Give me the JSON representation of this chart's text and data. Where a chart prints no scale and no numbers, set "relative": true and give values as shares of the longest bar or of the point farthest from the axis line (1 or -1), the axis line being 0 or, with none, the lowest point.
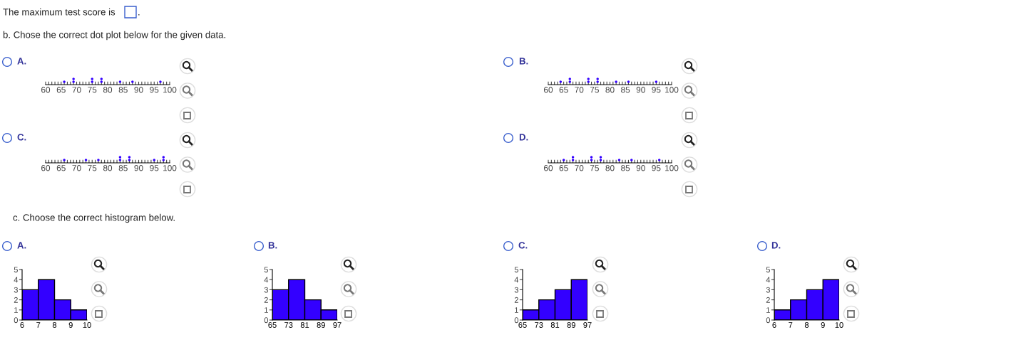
{
  "chart_data": [
    {
      "type": "scatter",
      "title": "A.",
      "annotations": [
        "The maximum test score is",
        ".",
        "b. Chose the correct dot plot below for the given data."
      ],
      "relative": true,
      "marker": "circle",
      "color": "#3300ff",
      "grid": false,
      "tick_labels": "x",
      "x": [
        66,
        69,
        69,
        75,
        75,
        78,
        78,
        84,
        88,
        97
      ],
      "values": [
        0.5,
        0.5,
        1,
        0.5,
        1,
        0.5,
        1,
        0.5,
        0.5,
        0.5
      ],
      "xlim": [
        60,
        100
      ],
      "xticks": [
        60,
        {
          "value": 61,
          "label": null
        },
        {
          "value": 62,
          "label": null
        },
        {
          "value": 63,
          "label": null
        },
        {
          "value": 64,
          "label": null
        },
        65,
        {
          "value": 66,
          "label": null
        },
        {
          "value": 67,
          "label": null
        },
        {
          "value": 68,
          "label": null
        },
        {
          "value": 69,
          "label": null
        },
        70,
        {
          "value": 71,
          "label": null
        },
        {
          "value": 72,
          "label": null
        },
        {
          "value": 73,
          "label": null
        },
        {
          "value": 74,
          "label": null
        },
        75,
        {
          "value": 76,
          "label": null
        },
        {
          "value": 77,
          "label": null
        },
        {
          "value": 78,
          "label": null
        },
        {
          "value": 79,
          "label": null
        },
        80,
        {
          "value": 81,
          "label": null
        },
        {
          "value": 82,
          "label": null
        },
        {
          "value": 83,
          "label": null
        },
        {
          "value": 84,
          "label": null
        },
        85,
        {
          "value": 86,
          "label": null
        },
        {
          "value": 87,
          "label": null
        },
        {
          "value": 88,
          "label": null
        },
        {
          "value": 89,
          "label": null
        },
        90,
        {
          "value": 91,
          "label": null
        },
        {
          "value": 92,
          "label": null
        },
        {
          "value": 93,
          "label": null
        },
        {
          "value": 94,
          "label": null
        },
        95,
        {
          "value": 96,
          "label": null
        },
        {
          "value": 97,
          "label": null
        },
        {
          "value": 98,
          "label": null
        },
        {
          "value": 99,
          "label": null
        },
        100
      ]
    },
    {
      "type": "scatter",
      "title": "B.",
      "relative": true,
      "marker": "circle",
      "color": "#3300ff",
      "grid": false,
      "tick_labels": "x",
      "x": [
        64,
        67,
        67,
        73,
        73,
        76,
        76,
        82,
        86,
        95
      ],
      "values": [
        0.5,
        0.5,
        1,
        0.5,
        1,
        0.5,
        1,
        0.5,
        0.5,
        0.5
      ],
      "xlim": [
        60,
        100
      ],
      "xticks": [
        60,
        {
          "value": 61,
          "label": null
        },
        {
          "value": 62,
          "label": null
        },
        {
          "value": 63,
          "label": null
        },
        {
          "value": 64,
          "label": null
        },
        65,
        {
          "value": 66,
          "label": null
        },
        {
          "value": 67,
          "label": null
        },
        {
          "value": 68,
          "label": null
        },
        {
          "value": 69,
          "label": null
        },
        70,
        {
          "value": 71,
          "label": null
        },
        {
          "value": 72,
          "label": null
        },
        {
          "value": 73,
          "label": null
        },
        {
          "value": 74,
          "label": null
        },
        75,
        {
          "value": 76,
          "label": null
        },
        {
          "value": 77,
          "label": null
        },
        {
          "value": 78,
          "label": null
        },
        {
          "value": 79,
          "label": null
        },
        80,
        {
          "value": 81,
          "label": null
        },
        {
          "value": 82,
          "label": null
        },
        {
          "value": 83,
          "label": null
        },
        {
          "value": 84,
          "label": null
        },
        85,
        {
          "value": 86,
          "label": null
        },
        {
          "value": 87,
          "label": null
        },
        {
          "value": 88,
          "label": null
        },
        {
          "value": 89,
          "label": null
        },
        90,
        {
          "value": 91,
          "label": null
        },
        {
          "value": 92,
          "label": null
        },
        {
          "value": 93,
          "label": null
        },
        {
          "value": 94,
          "label": null
        },
        95,
        {
          "value": 96,
          "label": null
        },
        {
          "value": 97,
          "label": null
        },
        {
          "value": 98,
          "label": null
        },
        {
          "value": 99,
          "label": null
        },
        100
      ]
    },
    {
      "type": "scatter",
      "title": "C.",
      "relative": true,
      "marker": "circle",
      "color": "#3300ff",
      "grid": false,
      "tick_labels": "x",
      "x": [
        66,
        73,
        77,
        84,
        84,
        87,
        87,
        95,
        98,
        98
      ],
      "values": [
        0.5,
        0.5,
        0.5,
        0.5,
        1,
        0.5,
        1,
        0.5,
        0.5,
        1
      ],
      "xlim": [
        60,
        100
      ],
      "xticks": [
        60,
        {
          "value": 61,
          "label": null
        },
        {
          "value": 62,
          "label": null
        },
        {
          "value": 63,
          "label": null
        },
        {
          "value": 64,
          "label": null
        },
        65,
        {
          "value": 66,
          "label": null
        },
        {
          "value": 67,
          "label": null
        },
        {
          "value": 68,
          "label": null
        },
        {
          "value": 69,
          "label": null
        },
        70,
        {
          "value": 71,
          "label": null
        },
        {
          "value": 72,
          "label": null
        },
        {
          "value": 73,
          "label": null
        },
        {
          "value": 74,
          "label": null
        },
        75,
        {
          "value": 76,
          "label": null
        },
        {
          "value": 77,
          "label": null
        },
        {
          "value": 78,
          "label": null
        },
        {
          "value": 79,
          "label": null
        },
        80,
        {
          "value": 81,
          "label": null
        },
        {
          "value": 82,
          "label": null
        },
        {
          "value": 83,
          "label": null
        },
        {
          "value": 84,
          "label": null
        },
        85,
        {
          "value": 86,
          "label": null
        },
        {
          "value": 87,
          "label": null
        },
        {
          "value": 88,
          "label": null
        },
        {
          "value": 89,
          "label": null
        },
        90,
        {
          "value": 91,
          "label": null
        },
        {
          "value": 92,
          "label": null
        },
        {
          "value": 93,
          "label": null
        },
        {
          "value": 94,
          "label": null
        },
        95,
        {
          "value": 96,
          "label": null
        },
        {
          "value": 97,
          "label": null
        },
        {
          "value": 98,
          "label": null
        },
        {
          "value": 99,
          "label": null
        },
        100
      ]
    },
    {
      "type": "scatter",
      "title": "D.",
      "relative": true,
      "marker": "circle",
      "color": "#3300ff",
      "grid": false,
      "tick_labels": "x",
      "x": [
        65,
        68,
        68,
        74,
        74,
        77,
        77,
        83,
        87,
        96
      ],
      "values": [
        0.5,
        0.5,
        1,
        0.5,
        1,
        0.5,
        1,
        0.5,
        0.5,
        0.5
      ],
      "xlim": [
        60,
        100
      ],
      "xticks": [
        60,
        {
          "value": 61,
          "label": null
        },
        {
          "value": 62,
          "label": null
        },
        {
          "value": 63,
          "label": null
        },
        {
          "value": 64,
          "label": null
        },
        65,
        {
          "value": 66,
          "label": null
        },
        {
          "value": 67,
          "label": null
        },
        {
          "value": 68,
          "label": null
        },
        {
          "value": 69,
          "label": null
        },
        70,
        {
          "value": 71,
          "label": null
        },
        {
          "value": 72,
          "label": null
        },
        {
          "value": 73,
          "label": null
        },
        {
          "value": 74,
          "label": null
        },
        75,
        {
          "value": 76,
          "label": null
        },
        {
          "value": 77,
          "label": null
        },
        {
          "value": 78,
          "label": null
        },
        {
          "value": 79,
          "label": null
        },
        80,
        {
          "value": 81,
          "label": null
        },
        {
          "value": 82,
          "label": null
        },
        {
          "value": 83,
          "label": null
        },
        {
          "value": 84,
          "label": null
        },
        85,
        {
          "value": 86,
          "label": null
        },
        {
          "value": 87,
          "label": null
        },
        {
          "value": 88,
          "label": null
        },
        {
          "value": 89,
          "label": null
        },
        90,
        {
          "value": 91,
          "label": null
        },
        {
          "value": 92,
          "label": null
        },
        {
          "value": 93,
          "label": null
        },
        {
          "value": 94,
          "label": null
        },
        95,
        {
          "value": 96,
          "label": null
        },
        {
          "value": 97,
          "label": null
        },
        {
          "value": 98,
          "label": null
        },
        {
          "value": 99,
          "label": null
        },
        100
      ]
    },
    {
      "type": "histogram",
      "title": "A.",
      "annotations": [
        "c. Choose the correct histogram below."
      ],
      "color": "#3300ff",
      "grid": false,
      "bins": [
        6,
        7,
        8,
        9,
        10
      ],
      "values": [
        3,
        4,
        2,
        1
      ],
      "xlim": [
        6,
        10
      ],
      "xticks": [
        6,
        7,
        8,
        9,
        10
      ],
      "ylim": [
        0,
        5
      ],
      "yticks": [
        0,
        1,
        2,
        3,
        4,
        5
      ]
    },
    {
      "type": "histogram",
      "title": "B.",
      "color": "#3300ff",
      "grid": false,
      "bins": [
        65,
        73,
        81,
        89,
        97
      ],
      "values": [
        3,
        4,
        2,
        1
      ],
      "xlim": [
        65,
        97
      ],
      "xticks": [
        65,
        73,
        81,
        89,
        97
      ],
      "ylim": [
        0,
        5
      ],
      "yticks": [
        0,
        1,
        2,
        3,
        4,
        5
      ]
    },
    {
      "type": "histogram",
      "title": "C.",
      "color": "#3300ff",
      "grid": false,
      "bins": [
        65,
        73,
        81,
        89,
        97
      ],
      "values": [
        1,
        2,
        3,
        4
      ],
      "xlim": [
        65,
        97
      ],
      "xticks": [
        65,
        73,
        81,
        89,
        97
      ],
      "ylim": [
        0,
        5
      ],
      "yticks": [
        0,
        1,
        2,
        3,
        4,
        5
      ]
    },
    {
      "type": "histogram",
      "title": "D.",
      "color": "#3300ff",
      "grid": false,
      "bins": [
        6,
        7,
        8,
        9,
        10
      ],
      "values": [
        1,
        2,
        3,
        4
      ],
      "xlim": [
        6,
        10
      ],
      "xticks": [
        6,
        7,
        8,
        9,
        10
      ],
      "ylim": [
        0,
        5
      ],
      "yticks": [
        0,
        1,
        2,
        3,
        4,
        5
      ]
    }
  ]
}
